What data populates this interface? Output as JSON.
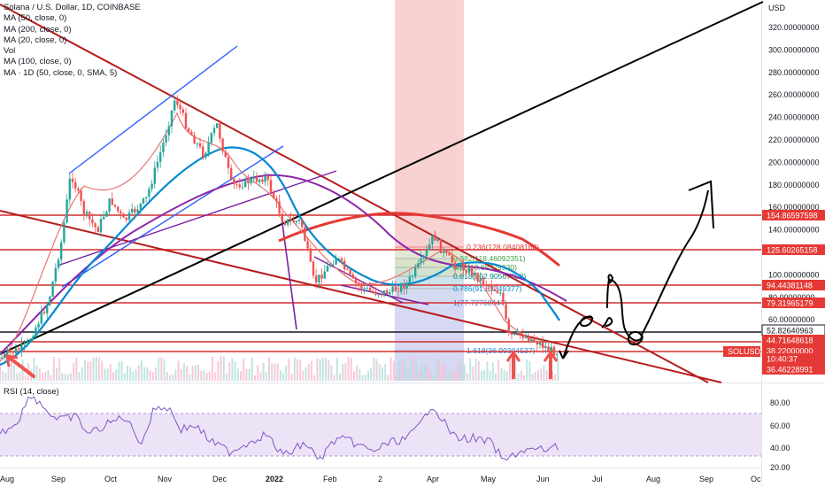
{
  "header": {
    "title": "Solana / U.S. Dollar, 1D, COINBASE",
    "indicators": [
      "MA (50, close, 0)",
      "MA (200, close, 0)",
      "MA (20, close, 0)",
      "Vol",
      "MA (100, close, 0)",
      "MA · 1D (50, close, 0, SMA, 5)"
    ]
  },
  "price_axis": {
    "currency": "USD",
    "ticks": [
      "320.00000000",
      "300.00000000",
      "280.00000000",
      "260.00000000",
      "240.00000000",
      "220.00000000",
      "200.00000000",
      "180.00000000",
      "160.00000000",
      "140.00000000",
      "120.00000000",
      "100.00000000",
      "80.00000000",
      "60.00000000"
    ],
    "labels": [
      {
        "text": "154.86597598",
        "color": "#e53935"
      },
      {
        "text": "125.60265158",
        "color": "#e53935"
      },
      {
        "text": "94.44381148",
        "color": "#e53935"
      },
      {
        "text": "79.31965179",
        "color": "#e53935"
      },
      {
        "text": "52.82640963",
        "color": "#131722"
      },
      {
        "text": "44.71648618",
        "color": "#e53935"
      },
      {
        "text": "38.22000000",
        "color": "#e53935"
      },
      {
        "text": "10:40:37",
        "color": "#e53935"
      },
      {
        "text": "36.46228991",
        "color": "#e53935"
      }
    ],
    "symbol_tag": "SOLUSD"
  },
  "time_axis": {
    "ticks": [
      "Aug",
      "Sep",
      "Oct",
      "Nov",
      "Dec",
      "2022",
      "Feb",
      "2",
      "Apr",
      "May",
      "Jun",
      "Jul",
      "Aug",
      "Sep",
      "Oc"
    ]
  },
  "fib_levels": [
    "0.236(128.08408168)",
    "0.382(118.46092351)",
    "0.5(110.68329930)",
    "0.618(102.90567508)",
    "0.786(91.83249377)",
    "1(77.72768447)",
    "1.618(36.99304537)"
  ],
  "rsi": {
    "label": "RSI (14, close)",
    "ticks": [
      "80.00",
      "60.00",
      "40.00",
      "20.00"
    ]
  },
  "chart_data": {
    "type": "line",
    "title": "Solana / U.S. Dollar, 1D, COINBASE",
    "ylabel": "USD",
    "ylim": [
      36,
      336
    ],
    "x": [
      "2021-08",
      "2021-09",
      "2021-10",
      "2021-11",
      "2021-12",
      "2022-01",
      "2022-02",
      "2022-03",
      "2022-04",
      "2022-05",
      "2022-06"
    ],
    "series": [
      {
        "name": "close",
        "values": [
          40,
          130,
          150,
          225,
          185,
          160,
          100,
          90,
          125,
          75,
          42
        ]
      }
    ],
    "horizontal_levels": [
      154.86597598,
      125.60265158,
      94.44381148,
      79.31965179,
      52.82640963,
      44.71648618,
      38.22,
      36.46228991
    ],
    "rsi_ylim": [
      16,
      92
    ],
    "rsi_band": [
      30,
      70
    ],
    "grid": false
  }
}
